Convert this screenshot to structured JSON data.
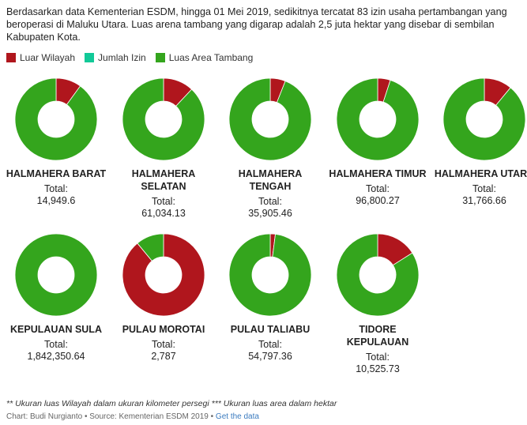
{
  "description": "Berdasarkan data Kementerian ESDM, hingga 01 Mei 2019, sedikitnya tercatat 83 izin usaha pertambangan yang beroperasi di Maluku Utara. Luas arena tambang yang digarap adalah 2,5 juta hektar yang disebar di sembilan Kabupaten Kota.",
  "legend": [
    {
      "label": "Luar Wilayah",
      "color": "#b0161d"
    },
    {
      "label": "Jumlah Izin",
      "color": "#12c998"
    },
    {
      "label": "Luas Area Tambang",
      "color": "#34a51d"
    }
  ],
  "total_label": "Total:",
  "chart_data": {
    "type": "pie",
    "series_names": [
      "Luar Wilayah",
      "Jumlah Izin",
      "Luas Area Tambang"
    ],
    "panels": [
      {
        "name": "HALMAHERA BARAT",
        "total": "14,949.6",
        "shares": [
          0.1,
          0.0,
          0.9
        ]
      },
      {
        "name": "HALMAHERA SELATAN",
        "total": "61,034.13",
        "shares": [
          0.12,
          0.0,
          0.88
        ]
      },
      {
        "name": "HALMAHERA TENGAH",
        "total": "35,905.46",
        "shares": [
          0.06,
          0.0,
          0.94
        ]
      },
      {
        "name": "HALMAHERA TIMUR",
        "total": "96,800.27",
        "shares": [
          0.05,
          0.0,
          0.95
        ]
      },
      {
        "name": "HALMAHERA UTARA",
        "total": "31,766.66",
        "shares": [
          0.11,
          0.0,
          0.89
        ]
      },
      {
        "name": "KEPULAUAN SULA",
        "total": "1,842,350.64",
        "shares": [
          0.0,
          0.0,
          1.0
        ]
      },
      {
        "name": "PULAU MOROTAI",
        "total": "2,787",
        "shares": [
          0.89,
          0.0,
          0.11
        ]
      },
      {
        "name": "PULAU TALIABU",
        "total": "54,797.36",
        "shares": [
          0.02,
          0.0,
          0.98
        ]
      },
      {
        "name": "TIDORE KEPULAUAN",
        "total": "10,525.73",
        "shares": [
          0.16,
          0.0,
          0.84
        ]
      }
    ]
  },
  "notes": "** Ukuran luas Wilayah dalam ukuran kilometer persegi *** Ukuran luas area dalam hektar",
  "source": {
    "credit": "Chart: Budi Nurgianto • Source: Kementerian ESDM 2019 • ",
    "link_label": "Get the data"
  }
}
